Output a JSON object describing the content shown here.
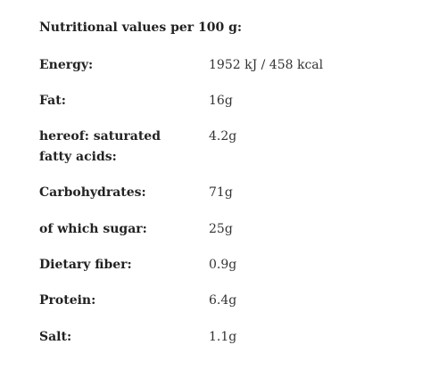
{
  "title": "Nutritional values per 100 g:",
  "rows": [
    [
      "Energy:",
      "1952 kJ / 458 kcal"
    ],
    [
      "Fat:",
      "16g"
    ],
    [
      "hereof: saturated fatty acids:",
      "4.2g"
    ],
    [
      "Carbohydrates:",
      "71g"
    ],
    [
      "of which sugar:",
      "25g"
    ],
    [
      "Dietary fiber:",
      "0.9g"
    ],
    [
      "Protein:",
      "6.4g"
    ],
    [
      "Salt:",
      "1.1g"
    ]
  ]
}
